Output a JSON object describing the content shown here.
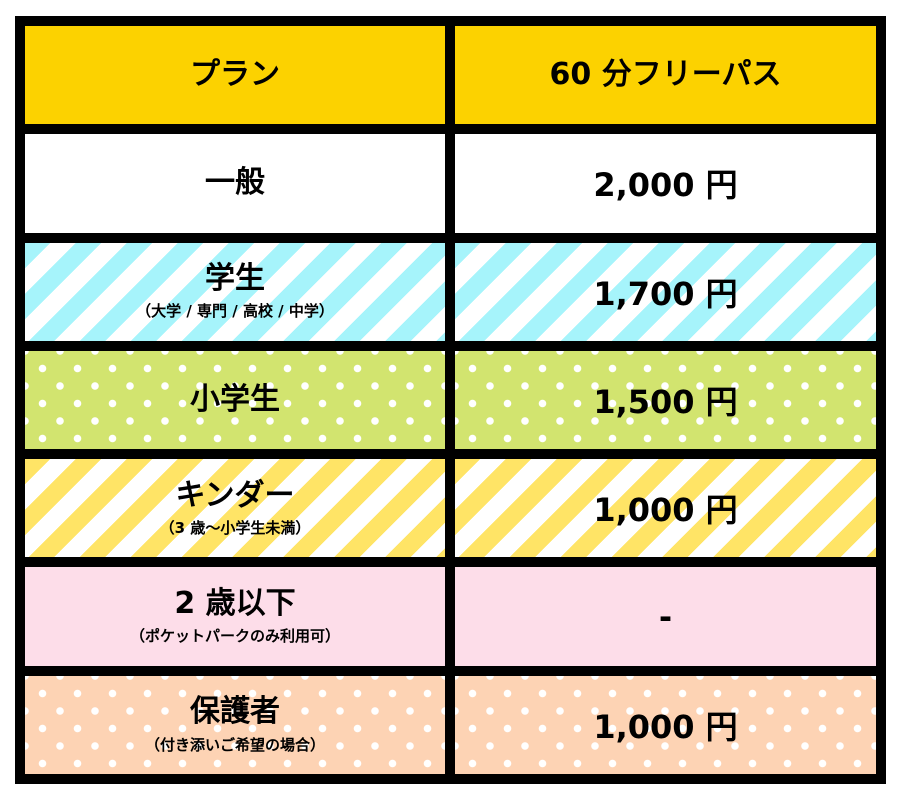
{
  "header": {
    "plan": "プラン",
    "pass": "60 分フリーパス"
  },
  "colors": {
    "header": "#FCD200",
    "student": "#A6F4FB",
    "elementary": "#D2E46F",
    "kinder": "#FFE466",
    "under2": "#FDDDE9",
    "guardian": "#FDD3B4"
  },
  "rows": [
    {
      "plan": "一般",
      "note": "",
      "price": "2,000 円"
    },
    {
      "plan": "学生",
      "note": "（大学 / 専門 / 高校 / 中学）",
      "price": "1,700 円"
    },
    {
      "plan": "小学生",
      "note": "",
      "price": "1,500 円"
    },
    {
      "plan": "キンダー",
      "note": "（3 歳～小学生未満）",
      "price": "1,000 円"
    },
    {
      "plan": "2 歳以下",
      "note": "（ポケットパークのみ利用可）",
      "price": "-"
    },
    {
      "plan": "保護者",
      "note": "（付き添いご希望の場合）",
      "price": "1,000 円"
    }
  ]
}
